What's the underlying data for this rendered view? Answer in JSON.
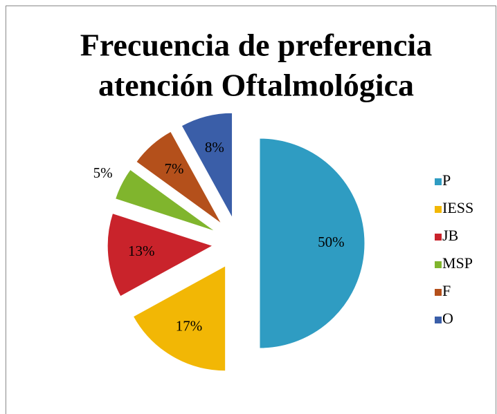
{
  "chart_data": {
    "type": "pie",
    "title": [
      "Frecuencia de preferencia",
      "atención Oftalmológica"
    ],
    "categories": [
      "P",
      "IESS",
      "JB",
      "MSP",
      "F",
      "O"
    ],
    "values": [
      50,
      17,
      13,
      5,
      7,
      8
    ],
    "value_labels": [
      "50%",
      "17%",
      "13%",
      "5%",
      "7%",
      "8%"
    ],
    "colors": [
      "#2f9cc2",
      "#f2b705",
      "#c9232b",
      "#80b52d",
      "#b4501b",
      "#3a5ea8"
    ],
    "legend": "right"
  }
}
